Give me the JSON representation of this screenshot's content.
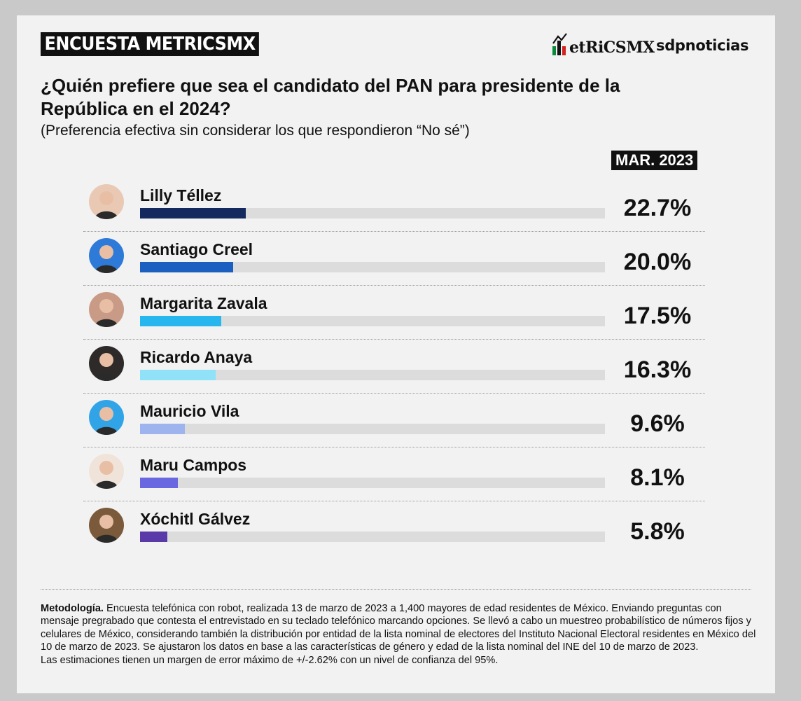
{
  "header": {
    "badge": "ENCUESTA METRICSMX",
    "logo_metrics": "etRiCSMX",
    "logo_sdp": "sdpnoticias"
  },
  "question": "¿Quién prefiere que sea el candidato del PAN para presidente de la República en el 2024?",
  "subtitle": "(Preferencia efectiva sin considerar los que respondieron “No sé”)",
  "period": "MAR. 2023",
  "chart_data": {
    "type": "bar",
    "categories": [
      "Lilly Téllez",
      "Santiago Creel",
      "Margarita Zavala",
      "Ricardo Anaya",
      "Mauricio Vila",
      "Maru Campos",
      "Xóchitl Gálvez"
    ],
    "values": [
      22.7,
      20.0,
      17.5,
      16.3,
      9.6,
      8.1,
      5.8
    ],
    "labels": [
      "22.7%",
      "20.0%",
      "17.5%",
      "16.3%",
      "9.6%",
      "8.1%",
      "5.8%"
    ],
    "colors": [
      "#14295e",
      "#1d5fc0",
      "#28b6ee",
      "#8fe2f8",
      "#9db4ee",
      "#6a68e0",
      "#5a3aa8"
    ],
    "avatar_colors": [
      "#e9c9b3",
      "#2d7ad8",
      "#c99b86",
      "#2f2a2a",
      "#31a4e8",
      "#f0e4da",
      "#7a5a3a"
    ],
    "ylim": [
      0,
      100
    ],
    "orientation": "horizontal"
  },
  "methodology": {
    "label": "Metodología.",
    "text": " Encuesta telefónica con robot, realizada 13 de marzo de 2023 a 1,400 mayores de edad residentes de México. Enviando preguntas con mensaje pregrabado que contesta el entrevistado en su teclado telefónico marcando opciones. Se llevó a cabo un muestreo probabilístico de números fijos y celulares de México, considerando también la distribución por entidad de la lista nominal de electores del Instituto Nacional Electoral residentes en México del 10 de marzo de 2023. Se ajustaron los datos en base a las características de género y edad de la lista nominal del INE del 10 de marzo de 2023.",
    "margin": "Las estimaciones tienen un margen de error máximo de +/-2.62% con un nivel de confianza del 95%."
  }
}
